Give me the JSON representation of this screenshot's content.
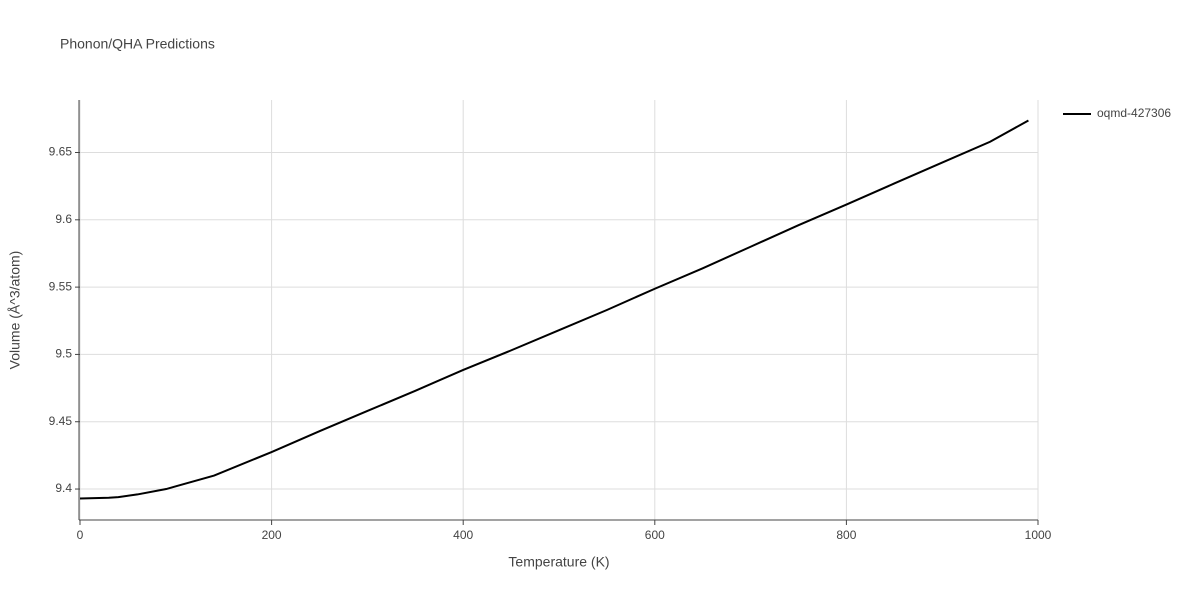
{
  "chart_data": {
    "type": "line",
    "title": "Phonon/QHA Predictions",
    "xlabel": "Temperature (K)",
    "ylabel": "Volume (Å^3/atom)",
    "x": [
      0,
      30,
      40,
      60,
      90,
      100,
      140,
      200,
      250,
      300,
      350,
      400,
      450,
      500,
      550,
      600,
      650,
      700,
      750,
      800,
      850,
      900,
      950,
      990
    ],
    "series": [
      {
        "name": "oqmd-427306",
        "color": "#000000",
        "values": [
          9.393,
          9.3935,
          9.394,
          9.396,
          9.4,
          9.402,
          9.41,
          9.4275,
          9.443,
          9.458,
          9.473,
          9.4885,
          9.503,
          9.518,
          9.533,
          9.5488,
          9.564,
          9.58,
          9.596,
          9.6113,
          9.627,
          9.6425,
          9.658,
          9.6738
        ]
      }
    ],
    "xlim": [
      0,
      1000
    ],
    "xticks": [
      0,
      200,
      400,
      600,
      800,
      1000
    ],
    "ylim": [
      9.377,
      9.689
    ],
    "yticks": [
      9.4,
      9.45,
      9.5,
      9.55,
      9.6,
      9.65
    ],
    "grid": true,
    "legend": "right"
  }
}
